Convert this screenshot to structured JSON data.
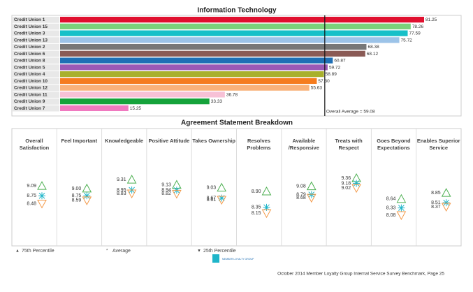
{
  "chart_data": [
    {
      "type": "hbar",
      "title": "Information Technology",
      "categories": [
        "Credit Union 1",
        "Credit Union 15",
        "Credit Union 3",
        "Credit Union 13",
        "Credit Union 2",
        "Credit Union 6",
        "Credit Union 8",
        "Credit Union 5",
        "Credit Union 4",
        "Credit Union 10",
        "Credit Union 12",
        "Credit Union 11",
        "Credit Union 9",
        "Credit Union 7"
      ],
      "values": [
        81.25,
        78.26,
        77.59,
        75.72,
        68.38,
        68.12,
        60.87,
        59.72,
        58.89,
        57.3,
        55.63,
        36.78,
        33.33,
        15.25
      ],
      "value_labels": [
        "81.25",
        "78.26",
        "77.59",
        "75.72",
        "68.38",
        "68.12",
        "60.87",
        "59.72",
        "58.89",
        "57.30",
        "55.63",
        "36.78",
        "33.33",
        "15.25"
      ],
      "colors": [
        "#e0102f",
        "#7bd37b",
        "#17c0c8",
        "#9cc3e8",
        "#777777",
        "#8a5a55",
        "#1f6fb5",
        "#9b59b6",
        "#a8b02c",
        "#f57c1f",
        "#f9b27a",
        "#f7c1d6",
        "#15a33b",
        "#f07ac0"
      ],
      "average": 59.08,
      "average_label": "Overall Average = 59.08"
    },
    {
      "type": "percentile",
      "title": "Agreement Statement Breakdown",
      "categories": [
        "Overall Satisfaction",
        "Feel Important",
        "Knowledgeable",
        "Positive Attitude",
        "Takes Ownership",
        "Resolves Problems",
        "Available /Responsive",
        "Treats with Respect",
        "Goes Beyond Expectations",
        "Enables Superior Service"
      ],
      "series": [
        {
          "name": "75th Percentile",
          "symbol": "▲",
          "color": "#4caf50",
          "values": [
            9.09,
            9.0,
            9.31,
            9.13,
            9.03,
            8.9,
            9.08,
            9.36,
            8.64,
            8.85
          ],
          "value_labels": [
            "9.09",
            "9.00",
            "9.31",
            "9.13",
            "9.03",
            "8.90",
            "9.08",
            "9.36",
            "8.64",
            "8.85"
          ]
        },
        {
          "name": "Average",
          "symbol": "*",
          "color": "#1fb5c9",
          "values": [
            8.75,
            8.75,
            8.95,
            8.94,
            8.67,
            8.35,
            8.79,
            9.18,
            8.33,
            8.51
          ],
          "value_labels": [
            "8.75",
            "8.75",
            "8.95",
            "8.94",
            "8.67",
            "8.35",
            "8.79",
            "9.18",
            "8.33",
            "8.51"
          ]
        },
        {
          "name": "25th Percentile",
          "symbol": "▼",
          "color": "#f39a4a",
          "values": [
            8.48,
            8.59,
            8.83,
            8.82,
            8.61,
            8.15,
            8.68,
            9.02,
            8.08,
            8.37
          ],
          "value_labels": [
            "8.48",
            "8.59",
            "8.83",
            "8.82",
            "8.61",
            "8.15",
            "8.68",
            "9.02",
            "8.08",
            "8.37"
          ]
        }
      ]
    }
  ],
  "footer": {
    "logo": "MEMBER LOYALTY GROUP",
    "note": "October 2014 Member Loyalty Group Internal Service Survey Benchmark, Page 25"
  }
}
